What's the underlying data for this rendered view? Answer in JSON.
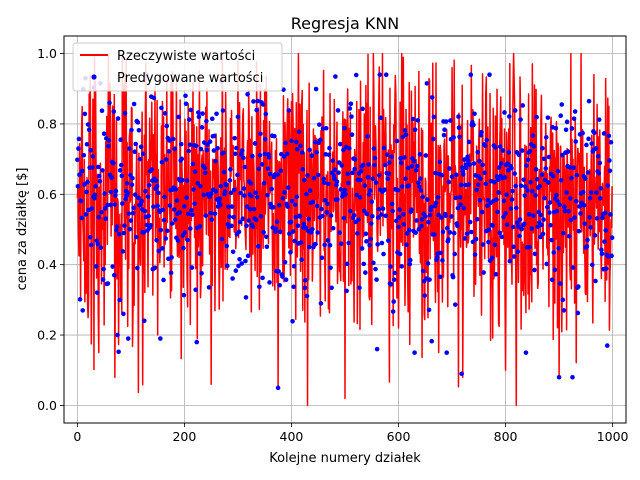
{
  "chart_data": {
    "type": "line",
    "title": "Regresja KNN",
    "xlabel": "Kolejne numery działek",
    "ylabel": "cena za działkę [$]",
    "xlim": [
      -25,
      1025
    ],
    "ylim": [
      -0.05,
      1.05
    ],
    "x_ticks": [
      0,
      200,
      400,
      600,
      800,
      1000
    ],
    "y_ticks": [
      0.0,
      0.2,
      0.4,
      0.6,
      0.8,
      1.0
    ],
    "x_tick_labels": [
      "0",
      "200",
      "400",
      "600",
      "800",
      "1000"
    ],
    "y_tick_labels": [
      "0.0",
      "0.2",
      "0.4",
      "0.6",
      "0.8",
      "1.0"
    ],
    "grid": true,
    "legend_position": "top-left",
    "n_points": 1000,
    "x_start": 0,
    "series": [
      {
        "name": "Rzeczywiste wartości",
        "style": "line",
        "color": "#ff0000",
        "y_range_observed": [
          0.0,
          1.0
        ],
        "y_center_observed": 0.6,
        "note": "1000 noisy values between about 0.0 and 1.0, concentrated 0.4–0.8"
      },
      {
        "name": "Predygowane wartości",
        "style": "markers",
        "color": "#0000ff",
        "y_range_observed": [
          0.05,
          0.94
        ],
        "y_center_observed": 0.6,
        "note": "1000 scattered dots, mostly 0.4–0.8"
      }
    ],
    "sample_points_real": [
      [
        0,
        0.59
      ],
      [
        20,
        0.25
      ],
      [
        40,
        0.15
      ],
      [
        60,
        0.85
      ],
      [
        70,
        0.08
      ],
      [
        100,
        0.6
      ],
      [
        150,
        0.2
      ],
      [
        175,
        0.92
      ],
      [
        200,
        0.5
      ],
      [
        250,
        0.06
      ],
      [
        300,
        0.98
      ],
      [
        375,
        0.05
      ],
      [
        430,
        0.0
      ],
      [
        500,
        0.02
      ],
      [
        600,
        0.22
      ],
      [
        700,
        0.96
      ],
      [
        720,
        0.08
      ],
      [
        800,
        0.1
      ],
      [
        900,
        0.08
      ],
      [
        1000,
        0.82
      ]
    ],
    "sample_points_predicted": [
      [
        10,
        0.27
      ],
      [
        15,
        0.93
      ],
      [
        60,
        0.86
      ],
      [
        75,
        0.2
      ],
      [
        95,
        0.19
      ],
      [
        155,
        0.19
      ],
      [
        223,
        0.18
      ],
      [
        300,
        0.82
      ],
      [
        375,
        0.05
      ],
      [
        455,
        0.29
      ],
      [
        560,
        0.16
      ],
      [
        630,
        0.15
      ],
      [
        690,
        0.15
      ],
      [
        718,
        0.09
      ],
      [
        838,
        0.15
      ],
      [
        900,
        0.08
      ],
      [
        925,
        0.08
      ],
      [
        990,
        0.17
      ]
    ]
  }
}
